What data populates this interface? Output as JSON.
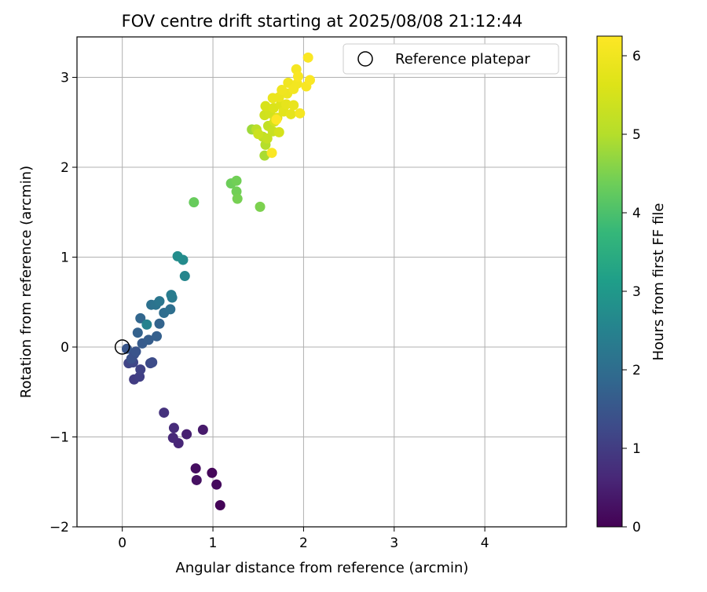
{
  "chart_data": {
    "type": "scatter",
    "title": "FOV centre drift starting at 2025/08/08 21:12:44",
    "xlabel": "Angular distance from reference (arcmin)",
    "ylabel": "Rotation from reference (arcmin)",
    "xlim": [
      -0.5,
      4.9
    ],
    "ylim": [
      -2.0,
      3.45
    ],
    "xticks": [
      0,
      1,
      2,
      3,
      4
    ],
    "yticks": [
      -2,
      -1,
      0,
      1,
      2,
      3
    ],
    "xtick_labels": [
      "0",
      "1",
      "2",
      "3",
      "4"
    ],
    "ytick_labels": [
      "−2",
      "−1",
      "0",
      "1",
      "2",
      "3"
    ],
    "grid": true,
    "legend": {
      "placement": "top-right",
      "entries": [
        "Reference platepar"
      ]
    },
    "reference_point": {
      "name": "Reference platepar",
      "x": 0,
      "y": 0
    },
    "colorbar": {
      "label": "Hours from first FF file",
      "range": [
        0,
        6.25
      ],
      "ticks": [
        0,
        1,
        2,
        3,
        4,
        5,
        6
      ],
      "tick_labels": [
        "0",
        "1",
        "2",
        "3",
        "4",
        "5",
        "6"
      ],
      "colormap": "viridis"
    },
    "points": [
      {
        "x": 1.08,
        "y": -1.76,
        "c": 0.05
      },
      {
        "x": 0.99,
        "y": -1.4,
        "c": 0.1
      },
      {
        "x": 1.04,
        "y": -1.53,
        "c": 0.15
      },
      {
        "x": 0.81,
        "y": -1.35,
        "c": 0.2
      },
      {
        "x": 0.82,
        "y": -1.48,
        "c": 0.25
      },
      {
        "x": 0.89,
        "y": -0.92,
        "c": 0.4
      },
      {
        "x": 0.71,
        "y": -0.97,
        "c": 0.5
      },
      {
        "x": 0.62,
        "y": -1.07,
        "c": 0.6
      },
      {
        "x": 0.56,
        "y": -1.01,
        "c": 0.65
      },
      {
        "x": 0.57,
        "y": -0.9,
        "c": 0.7
      },
      {
        "x": 0.46,
        "y": -0.73,
        "c": 0.8
      },
      {
        "x": 0.13,
        "y": -0.36,
        "c": 1.0
      },
      {
        "x": 0.19,
        "y": -0.33,
        "c": 1.05
      },
      {
        "x": 0.2,
        "y": -0.25,
        "c": 1.1
      },
      {
        "x": 0.07,
        "y": -0.18,
        "c": 1.15
      },
      {
        "x": 0.12,
        "y": -0.17,
        "c": 1.2
      },
      {
        "x": 0.31,
        "y": -0.18,
        "c": 1.25
      },
      {
        "x": 0.33,
        "y": -0.17,
        "c": 1.3
      },
      {
        "x": 0.13,
        "y": -0.08,
        "c": 1.35
      },
      {
        "x": 0.1,
        "y": -0.13,
        "c": 1.4
      },
      {
        "x": 0.15,
        "y": -0.05,
        "c": 1.45
      },
      {
        "x": 0.05,
        "y": -0.02,
        "c": 1.5
      },
      {
        "x": 0.22,
        "y": 0.04,
        "c": 1.6
      },
      {
        "x": 0.29,
        "y": 0.08,
        "c": 1.65
      },
      {
        "x": 0.38,
        "y": 0.12,
        "c": 1.7
      },
      {
        "x": 0.17,
        "y": 0.16,
        "c": 1.75
      },
      {
        "x": 0.41,
        "y": 0.26,
        "c": 1.8
      },
      {
        "x": 0.2,
        "y": 0.32,
        "c": 1.85
      },
      {
        "x": 0.46,
        "y": 0.38,
        "c": 2.0
      },
      {
        "x": 0.53,
        "y": 0.42,
        "c": 2.05
      },
      {
        "x": 0.32,
        "y": 0.47,
        "c": 2.1
      },
      {
        "x": 0.37,
        "y": 0.47,
        "c": 2.15
      },
      {
        "x": 0.41,
        "y": 0.51,
        "c": 2.2
      },
      {
        "x": 0.55,
        "y": 0.55,
        "c": 2.3
      },
      {
        "x": 0.54,
        "y": 0.58,
        "c": 2.35
      },
      {
        "x": 0.27,
        "y": 0.25,
        "c": 2.5
      },
      {
        "x": 0.69,
        "y": 0.79,
        "c": 2.6
      },
      {
        "x": 0.67,
        "y": 0.97,
        "c": 2.7
      },
      {
        "x": 0.61,
        "y": 1.01,
        "c": 2.75
      },
      {
        "x": 0.79,
        "y": 1.61,
        "c": 4.3
      },
      {
        "x": 1.2,
        "y": 1.82,
        "c": 4.35
      },
      {
        "x": 1.26,
        "y": 1.85,
        "c": 4.4
      },
      {
        "x": 1.26,
        "y": 1.73,
        "c": 4.4
      },
      {
        "x": 1.27,
        "y": 1.65,
        "c": 4.45
      },
      {
        "x": 1.52,
        "y": 1.56,
        "c": 4.5
      },
      {
        "x": 1.43,
        "y": 2.42,
        "c": 4.8
      },
      {
        "x": 1.57,
        "y": 2.13,
        "c": 4.9
      },
      {
        "x": 1.58,
        "y": 2.25,
        "c": 5.0
      },
      {
        "x": 1.48,
        "y": 2.42,
        "c": 5.1
      },
      {
        "x": 1.55,
        "y": 2.34,
        "c": 5.15
      },
      {
        "x": 1.61,
        "y": 2.46,
        "c": 5.2
      },
      {
        "x": 1.6,
        "y": 2.32,
        "c": 5.25
      },
      {
        "x": 1.66,
        "y": 2.4,
        "c": 5.3
      },
      {
        "x": 1.5,
        "y": 2.37,
        "c": 5.35
      },
      {
        "x": 1.57,
        "y": 2.58,
        "c": 5.4
      },
      {
        "x": 1.63,
        "y": 2.6,
        "c": 5.45
      },
      {
        "x": 1.73,
        "y": 2.39,
        "c": 5.5
      },
      {
        "x": 1.68,
        "y": 2.51,
        "c": 5.5
      },
      {
        "x": 1.58,
        "y": 2.68,
        "c": 5.55
      },
      {
        "x": 1.67,
        "y": 2.66,
        "c": 5.6
      },
      {
        "x": 1.75,
        "y": 2.7,
        "c": 5.65
      },
      {
        "x": 1.71,
        "y": 2.55,
        "c": 5.7
      },
      {
        "x": 1.78,
        "y": 2.62,
        "c": 5.75
      },
      {
        "x": 1.86,
        "y": 2.59,
        "c": 5.8
      },
      {
        "x": 1.81,
        "y": 2.7,
        "c": 5.8
      },
      {
        "x": 1.89,
        "y": 2.69,
        "c": 5.85
      },
      {
        "x": 1.73,
        "y": 2.78,
        "c": 5.9
      },
      {
        "x": 1.66,
        "y": 2.77,
        "c": 5.9
      },
      {
        "x": 1.82,
        "y": 2.82,
        "c": 5.95
      },
      {
        "x": 1.76,
        "y": 2.86,
        "c": 6.0
      },
      {
        "x": 1.83,
        "y": 2.94,
        "c": 6.0
      },
      {
        "x": 1.89,
        "y": 2.87,
        "c": 6.05
      },
      {
        "x": 1.93,
        "y": 2.93,
        "c": 6.05
      },
      {
        "x": 1.96,
        "y": 2.6,
        "c": 6.1
      },
      {
        "x": 1.92,
        "y": 3.09,
        "c": 6.1
      },
      {
        "x": 1.94,
        "y": 3.01,
        "c": 6.15
      },
      {
        "x": 2.03,
        "y": 2.9,
        "c": 6.15
      },
      {
        "x": 2.07,
        "y": 2.97,
        "c": 6.2
      },
      {
        "x": 2.05,
        "y": 3.22,
        "c": 6.2
      },
      {
        "x": 1.65,
        "y": 2.16,
        "c": 6.2
      },
      {
        "x": 1.7,
        "y": 2.53,
        "c": 6.25
      }
    ]
  }
}
